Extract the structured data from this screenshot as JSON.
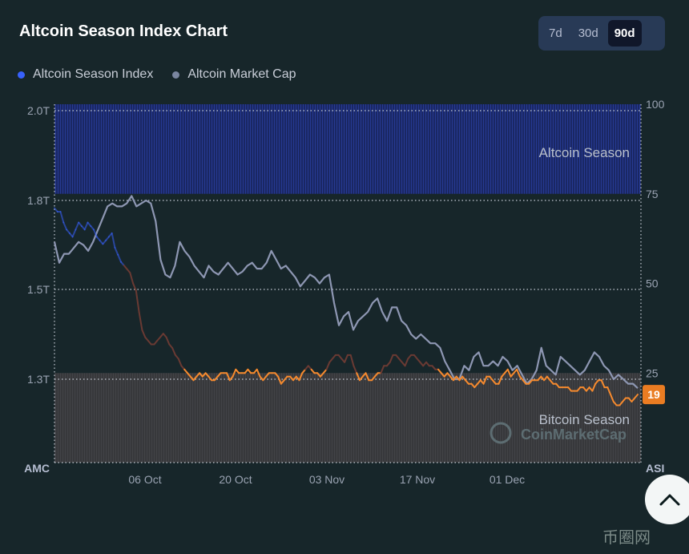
{
  "title": "Altcoin Season Index Chart",
  "ranges": [
    {
      "label": "7d",
      "active": false
    },
    {
      "label": "30d",
      "active": false
    },
    {
      "label": "90d",
      "active": true
    }
  ],
  "legend": [
    {
      "label": "Altcoin Season Index",
      "color": "#3861fb"
    },
    {
      "label": "Altcoin Market Cap",
      "color": "#7a86a0"
    }
  ],
  "colors": {
    "index_line": "#3861fb",
    "index_line_bitcoin_zone": "#f68a2e",
    "index_line_neutral_zone": "#6a3a33",
    "market_cap_line": "#8e97b3",
    "altcoin_zone": "#1c2a6e",
    "bitcoin_zone": "#3a3a3d",
    "current_badge": "#ea7c22"
  },
  "chart_data": {
    "type": "line",
    "x_ticks": [
      "06 Oct",
      "20 Oct",
      "03 Nov",
      "17 Nov",
      "01 Dec"
    ],
    "left_axis": {
      "title": "AMC",
      "ticks": [
        "2.0T",
        "1.8T",
        "1.5T",
        "1.3T"
      ]
    },
    "right_axis": {
      "title": "ASI",
      "ticks": [
        "100",
        "75",
        "50",
        "25"
      ],
      "range": [
        0,
        100
      ]
    },
    "zones": [
      {
        "label": "Altcoin Season",
        "from": 75,
        "to": 100
      },
      {
        "label": "Bitcoin Season",
        "from": 0,
        "to": 25
      }
    ],
    "current_value": "19",
    "series": [
      {
        "name": "Altcoin Season Index",
        "values": [
          71,
          70,
          70,
          67,
          65,
          64,
          63,
          65,
          67,
          66,
          65,
          67,
          66,
          65,
          63,
          62,
          61,
          62,
          63,
          64,
          60,
          58,
          56,
          55,
          54,
          53,
          50,
          48,
          42,
          37,
          35,
          34,
          33,
          33,
          34,
          35,
          36,
          35,
          33,
          32,
          30,
          29,
          27,
          26,
          25,
          24,
          23,
          24,
          25,
          24,
          25,
          24,
          23,
          23,
          24,
          25,
          25,
          25,
          23,
          24,
          26,
          25,
          25,
          25,
          26,
          25,
          25,
          26,
          24,
          23,
          24,
          25,
          25,
          25,
          24,
          22,
          23,
          24,
          24,
          23,
          24,
          23,
          25,
          26,
          27,
          26,
          25,
          25,
          24,
          25,
          26,
          28,
          29,
          30,
          30,
          29,
          28,
          30,
          30,
          27,
          25,
          23,
          24,
          25,
          23,
          23,
          24,
          25,
          25,
          27,
          27,
          28,
          30,
          30,
          29,
          28,
          27,
          29,
          30,
          30,
          29,
          28,
          27,
          28,
          27,
          27,
          26,
          26,
          25,
          24,
          25,
          24,
          23,
          24,
          23,
          24,
          23,
          22,
          22,
          21,
          22,
          23,
          22,
          24,
          24,
          23,
          22,
          22,
          24,
          25,
          26,
          24,
          25,
          26,
          24,
          23,
          22,
          22,
          23,
          23,
          23,
          24,
          23,
          24,
          23,
          22,
          22,
          21,
          21,
          21,
          21,
          20,
          20,
          20,
          21,
          21,
          20,
          21,
          20,
          22,
          23,
          23,
          21,
          21,
          19,
          17,
          16,
          16,
          17,
          18,
          18,
          17,
          18,
          19
        ]
      },
      {
        "name": "Altcoin Market Cap",
        "values": [
          1.66,
          1.59,
          1.62,
          1.62,
          1.64,
          1.66,
          1.65,
          1.63,
          1.66,
          1.7,
          1.74,
          1.78,
          1.79,
          1.78,
          1.78,
          1.79,
          1.81,
          1.78,
          1.79,
          1.8,
          1.79,
          1.73,
          1.6,
          1.55,
          1.54,
          1.58,
          1.66,
          1.63,
          1.61,
          1.58,
          1.56,
          1.54,
          1.58,
          1.56,
          1.55,
          1.57,
          1.59,
          1.57,
          1.55,
          1.56,
          1.58,
          1.59,
          1.57,
          1.57,
          1.59,
          1.63,
          1.6,
          1.57,
          1.58,
          1.56,
          1.54,
          1.51,
          1.53,
          1.55,
          1.54,
          1.52,
          1.54,
          1.55,
          1.47,
          1.42,
          1.44,
          1.45,
          1.41,
          1.43,
          1.44,
          1.45,
          1.47,
          1.48,
          1.45,
          1.43,
          1.46,
          1.46,
          1.43,
          1.42,
          1.4,
          1.39,
          1.4,
          1.39,
          1.38,
          1.38,
          1.37,
          1.34,
          1.32,
          1.3,
          1.3,
          1.33,
          1.32,
          1.35,
          1.36,
          1.33,
          1.33,
          1.34,
          1.33,
          1.35,
          1.34,
          1.32,
          1.33,
          1.31,
          1.29,
          1.3,
          1.32,
          1.37,
          1.33,
          1.32,
          1.31,
          1.35,
          1.34,
          1.33,
          1.32,
          1.31,
          1.32,
          1.34,
          1.36,
          1.35,
          1.33,
          1.32,
          1.3,
          1.31,
          1.3,
          1.29,
          1.29,
          1.28
        ]
      }
    ]
  },
  "watermarks": {
    "center": "CoinMarketCap",
    "corner": "币圈网"
  }
}
